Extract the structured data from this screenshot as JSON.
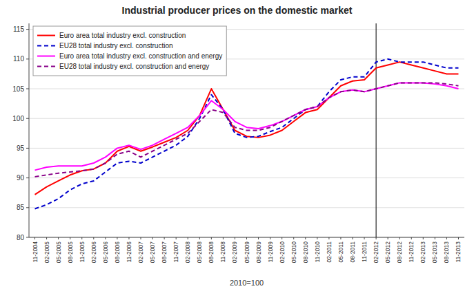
{
  "chart_data": {
    "type": "line",
    "title": "Industrial producer prices on the domestic market",
    "xlabel": "2010=100",
    "ylim": [
      80,
      116
    ],
    "yticks": [
      80,
      85,
      90,
      95,
      100,
      105,
      110,
      115
    ],
    "grid": true,
    "legend": "upper left",
    "vline": "02-2012",
    "categories": [
      "11-2004",
      "02-2005",
      "05-2005",
      "08-2005",
      "11-2005",
      "02-2006",
      "05-2006",
      "08-2006",
      "11-2006",
      "02-2007",
      "05-2007",
      "08-2007",
      "11-2007",
      "02-2008",
      "05-2008",
      "08-2008",
      "11-2008",
      "02-2009",
      "05-2009",
      "08-2009",
      "11-2009",
      "02-2010",
      "05-2010",
      "08-2010",
      "11-2010",
      "02-2011",
      "05-2011",
      "08-2011",
      "11-2011",
      "02-2012",
      "05-2012",
      "08-2012",
      "11-2012",
      "02-2013",
      "05-2013",
      "08-2013",
      "11-2013"
    ],
    "series": [
      {
        "name": "Euro area total industry excl. construction",
        "color": "#ff0000",
        "line_style": "solid",
        "values": [
          87.2,
          88.5,
          89.5,
          90.5,
          91.2,
          91.5,
          92.5,
          94.5,
          95.3,
          94.5,
          95.2,
          96.0,
          96.8,
          98.0,
          100.5,
          105.0,
          101.5,
          98.0,
          97.0,
          96.8,
          97.2,
          98.0,
          99.5,
          101.0,
          101.5,
          103.5,
          105.5,
          106.3,
          106.5,
          108.5,
          109.0,
          109.5,
          109.0,
          108.5,
          108.0,
          107.5,
          107.5
        ]
      },
      {
        "name": "EU28 total industry excl. construction",
        "color": "#0000cc",
        "line_style": "dashed",
        "values": [
          84.8,
          85.5,
          86.5,
          88.0,
          89.0,
          89.5,
          91.0,
          92.5,
          92.8,
          92.5,
          93.5,
          94.5,
          95.5,
          97.0,
          100.0,
          104.0,
          101.5,
          97.5,
          96.8,
          97.0,
          97.8,
          98.5,
          100.0,
          101.5,
          102.0,
          104.5,
          106.5,
          107.0,
          107.0,
          109.5,
          110.0,
          109.5,
          109.5,
          109.5,
          109.0,
          108.5,
          108.5
        ]
      },
      {
        "name": "Euro area total industry excl. construction and energy",
        "color": "#ff00ff",
        "line_style": "solid",
        "values": [
          91.3,
          91.8,
          92.0,
          92.0,
          92.0,
          92.5,
          93.5,
          95.0,
          95.5,
          94.8,
          95.5,
          96.5,
          97.5,
          98.5,
          100.5,
          103.0,
          101.5,
          99.5,
          98.5,
          98.3,
          98.8,
          99.5,
          100.5,
          101.5,
          102.0,
          103.5,
          104.5,
          104.8,
          104.5,
          105.0,
          105.5,
          106.0,
          106.0,
          106.0,
          105.8,
          105.5,
          105.0
        ]
      },
      {
        "name": "EU28 total industry excl. construction and energy",
        "color": "#880088",
        "line_style": "dashed",
        "values": [
          90.2,
          90.5,
          90.8,
          91.0,
          91.2,
          91.5,
          92.5,
          94.0,
          94.5,
          93.5,
          94.5,
          95.5,
          96.5,
          97.5,
          99.5,
          101.5,
          101.0,
          98.5,
          98.0,
          98.0,
          98.5,
          99.5,
          100.5,
          101.5,
          102.0,
          103.5,
          104.5,
          104.8,
          104.5,
          105.0,
          105.5,
          106.0,
          106.0,
          106.0,
          106.0,
          105.8,
          105.5
        ]
      }
    ]
  }
}
